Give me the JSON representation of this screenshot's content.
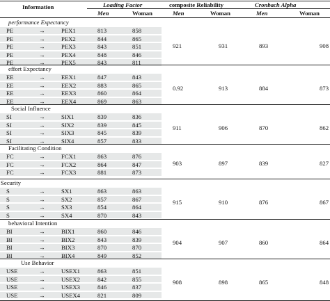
{
  "header": {
    "information": "Information",
    "loading_factor": "Loading Factor",
    "composite_reliability": "composite Reliability",
    "cronbach_alpha": "Cronbach Alpha",
    "men": "Men",
    "woman": "Woman"
  },
  "arrow": "→",
  "groups": [
    {
      "title": "performance Expectancy",
      "title_italic": true,
      "rows": [
        {
          "code": "PE",
          "item": "PEX1",
          "men": "813",
          "woman": "858"
        },
        {
          "code": "PE",
          "item": "PEX2",
          "men": "844",
          "woman": "865"
        },
        {
          "code": "PE",
          "item": "PEX3",
          "men": "843",
          "woman": "851"
        },
        {
          "code": "PE",
          "item": "PEX4",
          "men": "848",
          "woman": "846"
        },
        {
          "code": "PE",
          "item": "PEX5",
          "men": "843",
          "woman": "811"
        }
      ],
      "cr_men": "921",
      "cr_woman": "931",
      "ca_men": "893",
      "ca_woman": "908"
    },
    {
      "title": "effort Expectancy",
      "title_italic": false,
      "rows": [
        {
          "code": "EE",
          "item": "EEX1",
          "men": "847",
          "woman": "843"
        },
        {
          "code": "EE",
          "item": "EEX2",
          "men": "883",
          "woman": "865"
        },
        {
          "code": "EE",
          "item": "EEX3",
          "men": "860",
          "woman": "864"
        },
        {
          "code": "EE",
          "item": "EEX4",
          "men": "869",
          "woman": "863"
        }
      ],
      "cr_men": "0.92",
      "cr_woman": "913",
      "ca_men": "884",
      "ca_woman": "873"
    },
    {
      "title": "Social Influence",
      "title_italic": false,
      "rows": [
        {
          "code": "SI",
          "item": "SIX1",
          "men": "839",
          "woman": "836"
        },
        {
          "code": "SI",
          "item": "SIX2",
          "men": "839",
          "woman": "845"
        },
        {
          "code": "SI",
          "item": "SIX3",
          "men": "845",
          "woman": "839"
        },
        {
          "code": "SI",
          "item": "SIX4",
          "men": "857",
          "woman": "833"
        }
      ],
      "cr_men": "911",
      "cr_woman": "906",
      "ca_men": "870",
      "ca_woman": "862"
    },
    {
      "title": "Facilitating Condition",
      "title_italic": false,
      "rows": [
        {
          "code": "FC",
          "item": "FCX1",
          "men": "863",
          "woman": "876"
        },
        {
          "code": "FC",
          "item": "FCX2",
          "men": "864",
          "woman": "847"
        },
        {
          "code": "FC",
          "item": "FCX3",
          "men": "881",
          "woman": "873"
        }
      ],
      "cr_men": "903",
      "cr_woman": "897",
      "ca_men": "839",
      "ca_woman": "827"
    },
    {
      "title": "Security",
      "title_italic": false,
      "rows": [
        {
          "code": "S",
          "item": "SX1",
          "men": "863",
          "woman": "863"
        },
        {
          "code": "S",
          "item": "SX2",
          "men": "857",
          "woman": "867"
        },
        {
          "code": "S",
          "item": "SX3",
          "men": "854",
          "woman": "864"
        },
        {
          "code": "S",
          "item": "SX4",
          "men": "870",
          "woman": "843"
        }
      ],
      "cr_men": "915",
      "cr_woman": "910",
      "ca_men": "876",
      "ca_woman": "867"
    },
    {
      "title": "behavioral Intention",
      "title_italic": false,
      "rows": [
        {
          "code": "BI",
          "item": "BIX1",
          "men": "860",
          "woman": "846"
        },
        {
          "code": "BI",
          "item": "BIX2",
          "men": "843",
          "woman": "839"
        },
        {
          "code": "BI",
          "item": "BIX3",
          "men": "870",
          "woman": "870"
        },
        {
          "code": "BI",
          "item": "BIX4",
          "men": "849",
          "woman": "852"
        }
      ],
      "cr_men": "904",
      "cr_woman": "907",
      "ca_men": "860",
      "ca_woman": "864"
    },
    {
      "title": "Use Behavior",
      "title_italic": false,
      "rows": [
        {
          "code": "USE",
          "item": "USEX1",
          "men": "863",
          "woman": "851"
        },
        {
          "code": "USE",
          "item": "USEX2",
          "men": "842",
          "woman": "855"
        },
        {
          "code": "USE",
          "item": "USEX3",
          "men": "846",
          "woman": "837"
        },
        {
          "code": "USE",
          "item": "USEX4",
          "men": "821",
          "woman": "809"
        }
      ],
      "cr_men": "908",
      "cr_woman": "898",
      "ca_men": "865",
      "ca_woman": "848"
    }
  ]
}
